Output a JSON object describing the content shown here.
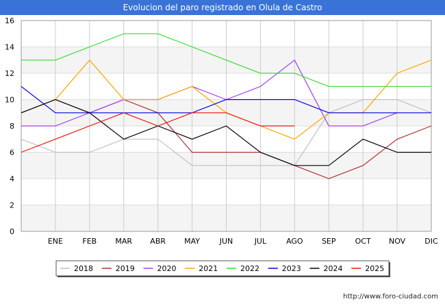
{
  "title": "Evolucion del paro registrado en Olula de Castro",
  "footer_url": "http://www.foro-ciudad.com",
  "chart_data": {
    "type": "line",
    "title": "Evolucion del paro registrado en Olula de Castro",
    "categories": [
      "",
      "ENE",
      "FEB",
      "MAR",
      "ABR",
      "MAY",
      "JUN",
      "JUL",
      "AGO",
      "SEP",
      "OCT",
      "NOV",
      "DIC"
    ],
    "ylim": [
      0,
      16
    ],
    "yticks": [
      0,
      2,
      4,
      6,
      8,
      10,
      12,
      14,
      16
    ],
    "grid": true,
    "legend_position": "bottom",
    "series": [
      {
        "name": "2018",
        "color": "#c0c0c0",
        "values": [
          7,
          6,
          6,
          7,
          7,
          5,
          5,
          5,
          5,
          9,
          10,
          10,
          9
        ]
      },
      {
        "name": "2019",
        "color": "#b03030",
        "values": [
          9,
          10,
          9,
          10,
          9,
          6,
          6,
          6,
          5,
          4,
          5,
          7,
          8
        ]
      },
      {
        "name": "2020",
        "color": "#a040f0",
        "values": [
          8,
          8,
          9,
          10,
          10,
          11,
          10,
          11,
          13,
          8,
          8,
          9,
          null
        ]
      },
      {
        "name": "2021",
        "color": "#ffa500",
        "values": [
          9,
          10,
          13,
          10,
          10,
          11,
          9,
          8,
          7,
          9,
          9,
          12,
          13
        ]
      },
      {
        "name": "2022",
        "color": "#33dd33",
        "values": [
          13,
          13,
          14,
          15,
          15,
          14,
          13,
          12,
          12,
          11,
          11,
          11,
          11
        ]
      },
      {
        "name": "2023",
        "color": "#0000dd",
        "values": [
          11,
          9,
          9,
          9,
          9,
          9,
          10,
          10,
          10,
          9,
          9,
          9,
          9
        ]
      },
      {
        "name": "2024",
        "color": "#000000",
        "values": [
          9,
          10,
          9,
          7,
          8,
          7,
          8,
          6,
          5,
          5,
          7,
          6,
          6
        ]
      },
      {
        "name": "2025",
        "color": "#ee1111",
        "values": [
          6,
          7,
          8,
          9,
          8,
          9,
          9,
          8,
          8,
          null,
          null,
          null,
          null
        ]
      }
    ]
  }
}
